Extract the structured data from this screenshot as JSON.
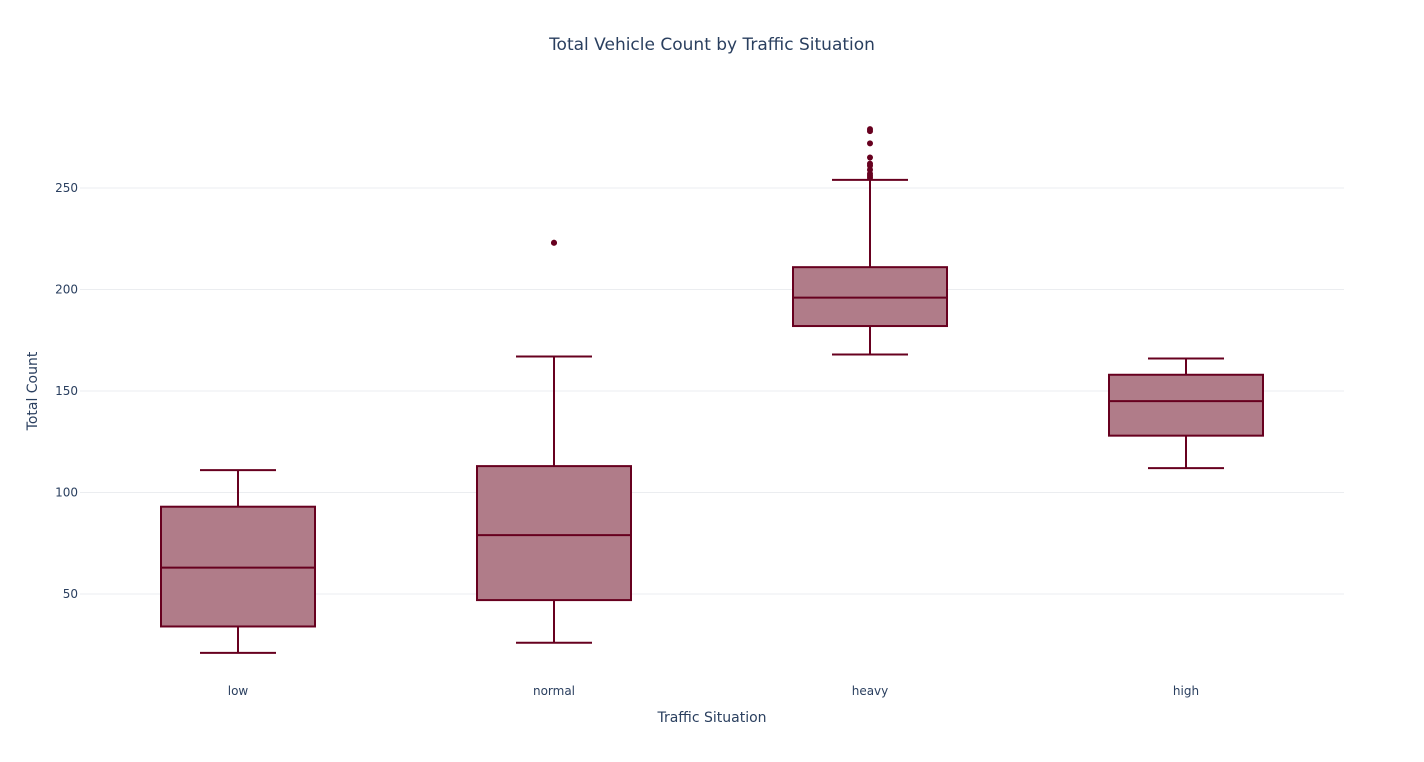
{
  "chart_data": {
    "type": "box",
    "title": "Total Vehicle Count by Traffic Situation",
    "xlabel": "Traffic Situation",
    "ylabel": "Total Count",
    "ylim": [
      10,
      290
    ],
    "yticks": [
      50,
      100,
      150,
      200,
      250
    ],
    "grid": true,
    "legend": "none",
    "colors": {
      "line": "#67001f",
      "fill": "#b07c89",
      "text": "#2a3f5f",
      "grid": "#ebedf0"
    },
    "categories": [
      "low",
      "normal",
      "heavy",
      "high"
    ],
    "boxes": [
      {
        "category": "low",
        "lower_whisker": 21,
        "q1": 34,
        "median": 63,
        "q3": 93,
        "upper_whisker": 111,
        "outliers": []
      },
      {
        "category": "normal",
        "lower_whisker": 26,
        "q1": 47,
        "median": 79,
        "q3": 113,
        "upper_whisker": 167,
        "outliers": [
          223,
          223
        ]
      },
      {
        "category": "heavy",
        "lower_whisker": 168,
        "q1": 182,
        "median": 196,
        "q3": 211,
        "upper_whisker": 254,
        "outliers": [
          255,
          256,
          257,
          259,
          261,
          262,
          265,
          272,
          278,
          279
        ]
      },
      {
        "category": "high",
        "lower_whisker": 112,
        "q1": 128,
        "median": 145,
        "q3": 158,
        "upper_whisker": 166,
        "outliers": []
      }
    ]
  }
}
